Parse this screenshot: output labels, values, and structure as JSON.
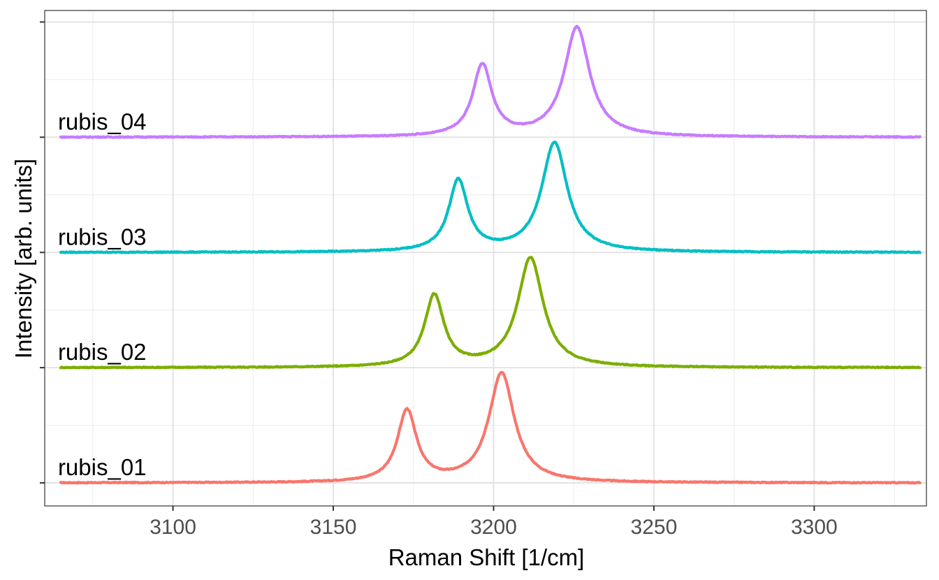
{
  "chart_data": {
    "type": "line",
    "xlabel": "Raman Shift [1/cm]",
    "ylabel": "Intensity [arb. units]",
    "xlim": [
      3060,
      3335
    ],
    "ylim": [
      -0.2,
      4.1
    ],
    "x_ticks": [
      3100,
      3150,
      3200,
      3250,
      3300
    ],
    "x_tick_labels": [
      "3100",
      "3150",
      "3200",
      "3250",
      "3300"
    ],
    "y_ticks": [
      0,
      1,
      2,
      3,
      4
    ],
    "grid": true,
    "legend": "none",
    "series": [
      {
        "name": "rubis_01",
        "color": "#F8766D",
        "offset": 0,
        "peaks": [
          {
            "center": 3173,
            "height": 0.62,
            "width": 3.6
          },
          {
            "center": 3202.5,
            "height": 0.95,
            "width": 4.8
          }
        ]
      },
      {
        "name": "rubis_02",
        "color": "#7CAE00",
        "offset": 1,
        "peaks": [
          {
            "center": 3181.5,
            "height": 0.62,
            "width": 3.6
          },
          {
            "center": 3211.5,
            "height": 0.95,
            "width": 4.8
          }
        ]
      },
      {
        "name": "rubis_03",
        "color": "#00BFC4",
        "offset": 2,
        "peaks": [
          {
            "center": 3189,
            "height": 0.62,
            "width": 3.6
          },
          {
            "center": 3219,
            "height": 0.95,
            "width": 4.8
          }
        ]
      },
      {
        "name": "rubis_04",
        "color": "#C77CFF",
        "offset": 3,
        "peaks": [
          {
            "center": 3196.5,
            "height": 0.62,
            "width": 3.6
          },
          {
            "center": 3226,
            "height": 0.95,
            "width": 4.8
          }
        ]
      }
    ],
    "x_range": [
      3065,
      3333
    ],
    "label_x": 3065
  }
}
